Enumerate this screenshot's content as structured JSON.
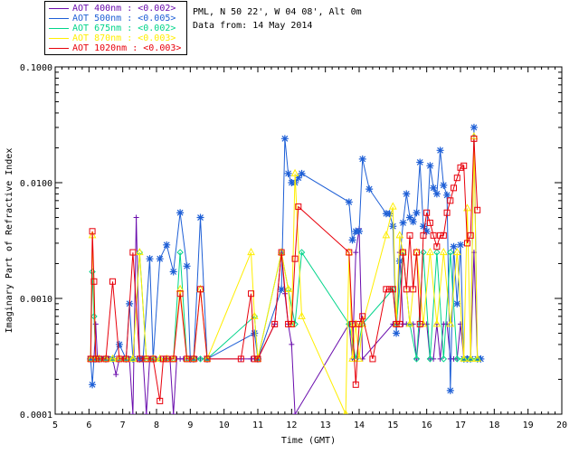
{
  "info": {
    "site": "PML, N 50 22', W 04 08', Alt 0m",
    "date": "Data from: 14 May 2014"
  },
  "chart_data": {
    "type": "line",
    "xlabel": "Time (GMT)",
    "ylabel": "Imaginary Part of Refractive Index",
    "xlim": [
      5,
      20
    ],
    "ylim": [
      0.0001,
      0.1
    ],
    "yscale": "log",
    "xticks": [
      "5",
      "6",
      "7",
      "8",
      "9",
      "10",
      "11",
      "12",
      "13",
      "14",
      "15",
      "16",
      "17",
      "18",
      "19",
      "20"
    ],
    "yticks": [
      "0.0001",
      "0.0010",
      "0.0100",
      "0.1000"
    ],
    "legend_position": "top-left outside",
    "series": [
      {
        "name": "AOT  400nm : <0.002>",
        "color": "#6a0dad",
        "marker": "+",
        "x": [
          6.05,
          6.1,
          6.15,
          6.2,
          6.25,
          6.3,
          6.4,
          6.5,
          6.6,
          6.7,
          6.8,
          6.9,
          7.0,
          7.1,
          7.2,
          7.3,
          7.4,
          7.5,
          7.6,
          7.7,
          7.8,
          7.9,
          8.0,
          8.1,
          8.2,
          8.3,
          8.4,
          8.5,
          8.6,
          8.7,
          8.8,
          8.9,
          9.0,
          9.1,
          9.2,
          9.3,
          9.5,
          10.5,
          10.8,
          10.9,
          11.0,
          11.5,
          11.7,
          11.8,
          11.9,
          12.0,
          12.1,
          13.7,
          13.8,
          13.9,
          14.0,
          14.1,
          15.0,
          15.1,
          15.2,
          15.3,
          15.4,
          15.5,
          15.6,
          15.7,
          15.8,
          15.9,
          16.0,
          16.1,
          16.2,
          16.3,
          16.4,
          16.5,
          16.6,
          16.7,
          16.8,
          16.9,
          17.0,
          17.1,
          17.2,
          17.3,
          17.4,
          17.5,
          17.6
        ],
        "y": [
          0.0003,
          0.0003,
          0.0003,
          0.0006,
          0.0003,
          0.0003,
          0.0003,
          0.0003,
          0.0003,
          0.0003,
          0.00022,
          0.0003,
          0.0003,
          0.0003,
          0.0003,
          0.0001,
          0.005,
          0.0003,
          0.0003,
          0.0001,
          0.0003,
          0.0003,
          0.0003,
          0.0003,
          0.0003,
          0.0003,
          0.0003,
          0.0001,
          0.0003,
          0.0003,
          0.0003,
          0.0003,
          0.0003,
          0.0003,
          0.0003,
          0.0003,
          0.0003,
          0.0003,
          0.0003,
          0.0003,
          0.0003,
          0.0006,
          0.0025,
          0.0011,
          0.0006,
          0.0004,
          0.0001,
          0.0006,
          0.0003,
          0.0025,
          0.004,
          0.0003,
          0.0006,
          0.0006,
          0.0025,
          0.0006,
          0.0006,
          0.0006,
          0.0006,
          0.0003,
          0.0006,
          0.0006,
          0.0006,
          0.0003,
          0.0003,
          0.0006,
          0.0003,
          0.0006,
          0.0006,
          0.0003,
          0.0003,
          0.0003,
          0.0006,
          0.0003,
          0.0003,
          0.0003,
          0.0025,
          0.0003,
          0.0003
        ]
      },
      {
        "name": "AOT  500nm : <0.005>",
        "color": "#1e5fd6",
        "marker": "*",
        "x": [
          6.05,
          6.1,
          6.15,
          6.2,
          6.3,
          6.5,
          6.7,
          6.9,
          7.1,
          7.2,
          7.3,
          7.5,
          7.6,
          7.8,
          7.9,
          8.1,
          8.3,
          8.5,
          8.7,
          8.9,
          9.0,
          9.1,
          9.3,
          9.5,
          10.9,
          11.0,
          11.7,
          11.8,
          11.9,
          12.0,
          12.1,
          12.2,
          12.3,
          13.7,
          13.8,
          13.9,
          14.0,
          14.1,
          14.3,
          14.8,
          14.9,
          15.0,
          15.1,
          15.2,
          15.3,
          15.4,
          15.5,
          15.6,
          15.7,
          15.8,
          15.9,
          16.0,
          16.1,
          16.2,
          16.3,
          16.4,
          16.5,
          16.6,
          16.7,
          16.8,
          16.9,
          17.0,
          17.1,
          17.2,
          17.3,
          17.4,
          17.5,
          17.6
        ],
        "y": [
          0.0003,
          0.00018,
          0.0003,
          0.0003,
          0.0003,
          0.0003,
          0.0003,
          0.0004,
          0.0003,
          0.0009,
          0.0003,
          0.0003,
          0.0003,
          0.0022,
          0.0003,
          0.0022,
          0.0029,
          0.0017,
          0.0055,
          0.0019,
          0.0003,
          0.0003,
          0.005,
          0.0003,
          0.0005,
          0.0003,
          0.0012,
          0.024,
          0.012,
          0.01,
          0.01,
          0.011,
          0.012,
          0.0068,
          0.0032,
          0.0038,
          0.0038,
          0.016,
          0.0088,
          0.0054,
          0.0054,
          0.0042,
          0.0005,
          0.0021,
          0.0045,
          0.008,
          0.005,
          0.0046,
          0.0055,
          0.015,
          0.0042,
          0.0038,
          0.014,
          0.009,
          0.008,
          0.019,
          0.0095,
          0.0078,
          0.00016,
          0.0028,
          0.0009,
          0.0029,
          0.0003,
          0.0003,
          0.0003,
          0.03,
          0.0003,
          0.0003
        ]
      },
      {
        "name": "AOT  675nm : <0.002>",
        "color": "#00d48a",
        "marker": "diamond",
        "x": [
          6.05,
          6.1,
          6.15,
          6.2,
          6.3,
          6.5,
          6.7,
          6.9,
          7.1,
          7.3,
          7.5,
          7.7,
          7.9,
          8.1,
          8.3,
          8.5,
          8.7,
          8.9,
          9.1,
          9.3,
          9.5,
          10.9,
          11.0,
          11.7,
          11.9,
          12.1,
          12.3,
          13.7,
          13.9,
          14.1,
          15.0,
          15.1,
          15.3,
          15.5,
          15.7,
          15.9,
          16.1,
          16.3,
          16.5,
          16.7,
          16.9,
          17.1,
          17.3,
          17.5
        ],
        "y": [
          0.0003,
          0.0017,
          0.0007,
          0.0003,
          0.0003,
          0.0003,
          0.0003,
          0.0003,
          0.0003,
          0.0003,
          0.0025,
          0.0003,
          0.0003,
          0.0003,
          0.0003,
          0.0003,
          0.0025,
          0.0003,
          0.0003,
          0.0003,
          0.0003,
          0.0007,
          0.0003,
          0.0025,
          0.0012,
          0.0006,
          0.0025,
          0.0006,
          0.0003,
          0.0006,
          0.0012,
          0.0006,
          0.0025,
          0.0006,
          0.0003,
          0.0025,
          0.0003,
          0.0025,
          0.0003,
          0.0025,
          0.0003,
          0.0003,
          0.0003,
          0.0003
        ]
      },
      {
        "name": "AOT  870nm : <0.003>",
        "color": "#ffee00",
        "marker": "triangle",
        "x": [
          6.05,
          6.1,
          6.2,
          6.3,
          6.5,
          6.7,
          6.9,
          7.1,
          7.3,
          7.5,
          7.7,
          7.9,
          8.1,
          8.3,
          8.5,
          8.7,
          8.9,
          9.1,
          9.3,
          9.5,
          10.8,
          10.9,
          11.0,
          11.7,
          11.9,
          12.0,
          12.1,
          12.3,
          13.6,
          13.7,
          13.8,
          13.9,
          14.0,
          14.1,
          14.8,
          15.0,
          15.1,
          15.2,
          15.3,
          15.5,
          15.7,
          15.9,
          16.1,
          16.3,
          16.5,
          16.7,
          16.9,
          17.1,
          17.2,
          17.3,
          17.4,
          17.5
        ],
        "y": [
          0.0003,
          0.0035,
          0.0003,
          0.0003,
          0.0003,
          0.0003,
          0.0003,
          0.0003,
          0.0003,
          0.0025,
          0.0003,
          0.0003,
          0.0003,
          0.0003,
          0.0003,
          0.0012,
          0.0003,
          0.0003,
          0.0012,
          0.0003,
          0.0025,
          0.0007,
          0.0003,
          0.0025,
          0.0012,
          0.0006,
          0.012,
          0.0007,
          0.0001,
          0.0025,
          0.0003,
          0.0006,
          0.0003,
          0.0006,
          0.0035,
          0.0062,
          0.0006,
          0.0035,
          0.0025,
          0.0006,
          0.0025,
          0.0006,
          0.0025,
          0.0006,
          0.0025,
          0.0006,
          0.0025,
          0.0003,
          0.006,
          0.0003,
          0.025,
          0.0003
        ]
      },
      {
        "name": "AOT 1020nm : <0.003>",
        "color": "#e8000b",
        "marker": "square",
        "x": [
          6.05,
          6.1,
          6.15,
          6.2,
          6.3,
          6.5,
          6.7,
          6.9,
          7.1,
          7.3,
          7.5,
          7.7,
          7.9,
          8.1,
          8.2,
          8.3,
          8.5,
          8.7,
          8.9,
          9.1,
          9.3,
          9.5,
          10.5,
          10.8,
          10.9,
          11.0,
          11.5,
          11.7,
          11.9,
          12.0,
          12.1,
          12.2,
          13.7,
          13.8,
          13.9,
          14.0,
          14.1,
          14.4,
          14.8,
          14.9,
          15.0,
          15.1,
          15.2,
          15.3,
          15.4,
          15.5,
          15.6,
          15.7,
          15.8,
          15.9,
          16.0,
          16.1,
          16.2,
          16.3,
          16.4,
          16.5,
          16.6,
          16.7,
          16.8,
          16.9,
          17.0,
          17.1,
          17.2,
          17.3,
          17.4,
          17.5
        ],
        "y": [
          0.0003,
          0.0038,
          0.0014,
          0.0003,
          0.0003,
          0.0003,
          0.0014,
          0.0003,
          0.0003,
          0.0025,
          0.0003,
          0.0003,
          0.0003,
          0.00013,
          0.0003,
          0.0003,
          0.0003,
          0.0011,
          0.0003,
          0.0003,
          0.0012,
          0.0003,
          0.0003,
          0.0011,
          0.0003,
          0.0003,
          0.0006,
          0.0025,
          0.0006,
          0.0006,
          0.0022,
          0.0062,
          0.0025,
          0.0006,
          0.00018,
          0.0006,
          0.0007,
          0.0003,
          0.0012,
          0.0012,
          0.0012,
          0.0006,
          0.0006,
          0.0025,
          0.0012,
          0.0035,
          0.0012,
          0.0025,
          0.0006,
          0.0035,
          0.0055,
          0.0045,
          0.0035,
          0.0028,
          0.0035,
          0.0035,
          0.0055,
          0.007,
          0.009,
          0.011,
          0.0135,
          0.014,
          0.003,
          0.0035,
          0.024,
          0.0058
        ]
      }
    ]
  }
}
